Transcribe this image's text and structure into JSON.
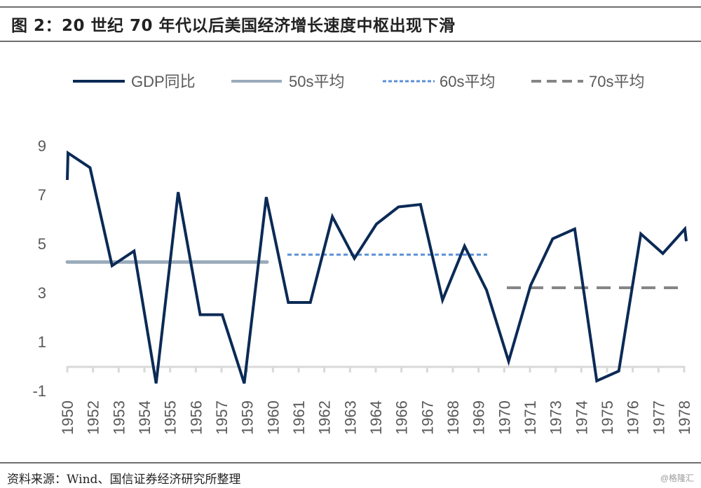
{
  "title": "图 2：20 世纪 70 年代以后美国经济增长速度中枢出现下滑",
  "source": "资料来源：Wind、国信证券经济研究所整理",
  "watermark": "@格隆汇",
  "colors": {
    "gdp": "#0b2a55",
    "avg50s": "#9aabbb",
    "avg60s": "#5b8fd6",
    "avg70s": "#868686",
    "axis": "#d9d9d9",
    "text": "#595959"
  },
  "chart_data": {
    "type": "line",
    "title": "",
    "xlabel": "",
    "ylabel": "",
    "ylim": [
      -1,
      9
    ],
    "yticks": [
      9,
      7,
      5,
      3,
      1,
      -1
    ],
    "grid": false,
    "legend_position": "top",
    "x_tick_labels": [
      "1950",
      "1952",
      "1953",
      "1954",
      "1955",
      "1956",
      "1957",
      "1959",
      "1960",
      "1961",
      "1962",
      "1963",
      "1964",
      "1966",
      "1967",
      "1968",
      "1969",
      "1970",
      "1971",
      "1973",
      "1974",
      "1975",
      "1976",
      "1977",
      "1978"
    ],
    "x": [
      1950,
      1951,
      1952,
      1953,
      1954,
      1955,
      1956,
      1957,
      1958,
      1959,
      1960,
      1961,
      1962,
      1963,
      1964,
      1965,
      1966,
      1967,
      1968,
      1969,
      1970,
      1971,
      1972,
      1973,
      1974,
      1975,
      1976,
      1977,
      1978
    ],
    "series": [
      {
        "name": "GDP同比",
        "style": "solid",
        "values": [
          8.7,
          8.1,
          4.1,
          4.7,
          -0.7,
          7.1,
          2.1,
          2.1,
          -0.7,
          6.9,
          2.6,
          2.6,
          6.1,
          4.4,
          5.8,
          6.5,
          6.6,
          2.7,
          4.9,
          3.1,
          0.2,
          3.3,
          5.2,
          5.6,
          -0.6,
          -0.2,
          5.4,
          4.6,
          5.6
        ]
      },
      {
        "name": "50s平均",
        "style": "solid",
        "value": 4.25,
        "x_range": [
          1950,
          1959
        ]
      },
      {
        "name": "60s平均",
        "style": "dotted",
        "value": 4.55,
        "x_range": [
          1960,
          1969
        ]
      },
      {
        "name": "70s平均",
        "style": "dashed",
        "value": 3.2,
        "x_range": [
          1970,
          1978
        ]
      }
    ]
  }
}
